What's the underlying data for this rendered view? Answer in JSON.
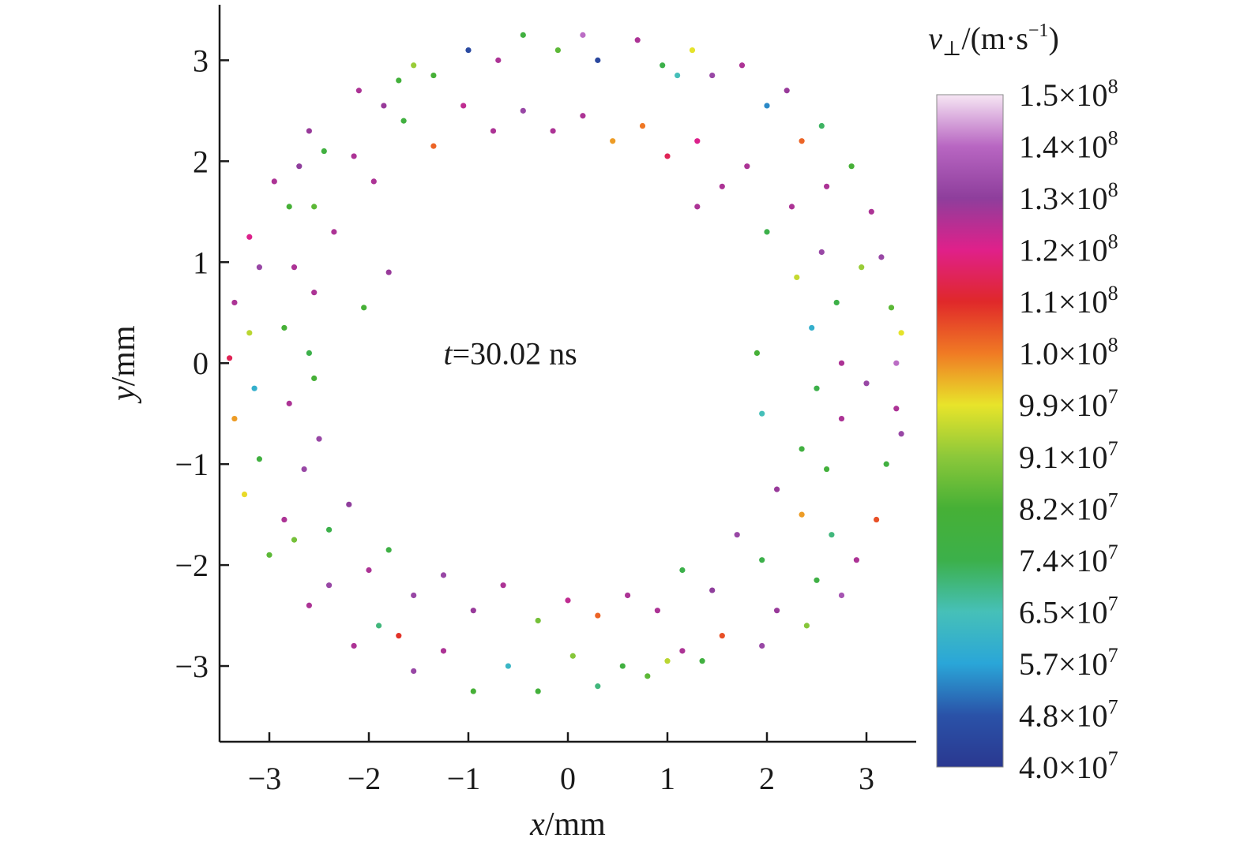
{
  "chart_data": {
    "type": "scatter",
    "xlabel": {
      "var": "x",
      "unit": "/mm"
    },
    "ylabel": {
      "var": "y",
      "unit": "/mm"
    },
    "xlim": [
      -3.5,
      3.5
    ],
    "ylim": [
      -3.75,
      3.55
    ],
    "xticks": [
      -3,
      -2,
      -1,
      0,
      1,
      2,
      3
    ],
    "yticks": [
      -3,
      -2,
      -1,
      0,
      1,
      2,
      3
    ],
    "xtick_labels": [
      "−3",
      "−2",
      "−1",
      "0",
      "1",
      "2",
      "3"
    ],
    "ytick_labels": [
      "−3",
      "−2",
      "−1",
      "0",
      "1",
      "2",
      "3"
    ],
    "grid": false,
    "annotation": {
      "var": "t",
      "text": "=30.02 ns",
      "x": -1.25,
      "y": 0.1
    },
    "colorbar": {
      "title": {
        "var": "v",
        "sub": "⊥",
        "unit": "/(m·s",
        "sup": "−1",
        "close": ")"
      },
      "position": "right",
      "min": 40000000.0,
      "max": 150000000.0,
      "labels_top_to_bottom": [
        {
          "mantissa": "1.5×10",
          "exp": "8"
        },
        {
          "mantissa": "1.4×10",
          "exp": "8"
        },
        {
          "mantissa": "1.3×10",
          "exp": "8"
        },
        {
          "mantissa": "1.2×10",
          "exp": "8"
        },
        {
          "mantissa": "1.1×10",
          "exp": "8"
        },
        {
          "mantissa": "1.0×10",
          "exp": "8"
        },
        {
          "mantissa": "9.9×10",
          "exp": "7"
        },
        {
          "mantissa": "9.1×10",
          "exp": "7"
        },
        {
          "mantissa": "8.2×10",
          "exp": "7"
        },
        {
          "mantissa": "7.4×10",
          "exp": "7"
        },
        {
          "mantissa": "6.5×10",
          "exp": "7"
        },
        {
          "mantissa": "5.7×10",
          "exp": "7"
        },
        {
          "mantissa": "4.8×10",
          "exp": "7"
        },
        {
          "mantissa": "4.0×10",
          "exp": "7"
        }
      ],
      "colormap_top_to_bottom": [
        "#f6e6f4",
        "#b866c2",
        "#8e3e9c",
        "#e0208a",
        "#e0282a",
        "#f07a24",
        "#e8e42a",
        "#8cc83a",
        "#46b036",
        "#3cb04a",
        "#46c0b8",
        "#2aa6d8",
        "#2a52a8",
        "#2a3890"
      ]
    },
    "series": [
      {
        "ring": "outer band",
        "points": [
          [
            3.3,
            0.0,
            142000000.0
          ],
          [
            3.25,
            0.55,
            85000000.0
          ],
          [
            3.3,
            -0.45,
            130000000.0
          ],
          [
            3.15,
            1.05,
            135000000.0
          ],
          [
            3.2,
            -1.0,
            78000000.0
          ],
          [
            3.05,
            1.5,
            130000000.0
          ],
          [
            3.1,
            -1.55,
            112000000.0
          ],
          [
            2.85,
            1.95,
            82000000.0
          ],
          [
            2.9,
            -1.95,
            130000000.0
          ],
          [
            2.55,
            2.35,
            72000000.0
          ],
          [
            2.75,
            -2.3,
            138000000.0
          ],
          [
            2.2,
            2.7,
            132000000.0
          ],
          [
            2.4,
            -2.6,
            90000000.0
          ],
          [
            1.75,
            2.95,
            130000000.0
          ],
          [
            1.95,
            -2.8,
            135000000.0
          ],
          [
            1.25,
            3.1,
            99000000.0
          ],
          [
            1.35,
            -2.95,
            78000000.0
          ],
          [
            0.7,
            3.2,
            130000000.0
          ],
          [
            0.8,
            -3.1,
            85000000.0
          ],
          [
            0.15,
            3.25,
            142000000.0
          ],
          [
            0.3,
            -3.2,
            70000000.0
          ],
          [
            -0.45,
            3.25,
            78000000.0
          ],
          [
            -0.3,
            -3.25,
            80000000.0
          ],
          [
            -1.0,
            3.1,
            46000000.0
          ],
          [
            -0.95,
            -3.25,
            82000000.0
          ],
          [
            -1.55,
            2.95,
            92000000.0
          ],
          [
            -1.55,
            -3.05,
            135000000.0
          ],
          [
            -2.1,
            2.7,
            130000000.0
          ],
          [
            -2.15,
            -2.8,
            130000000.0
          ],
          [
            -2.6,
            2.3,
            132000000.0
          ],
          [
            -2.6,
            -2.4,
            130000000.0
          ],
          [
            -2.95,
            1.8,
            130000000.0
          ],
          [
            -3.0,
            -1.9,
            85000000.0
          ],
          [
            -3.2,
            1.25,
            125000000.0
          ],
          [
            -3.25,
            -1.3,
            100000000.0
          ],
          [
            -3.35,
            0.6,
            130000000.0
          ],
          [
            -3.35,
            -0.55,
            105000000.0
          ],
          [
            -3.4,
            0.05,
            120000000.0
          ],
          [
            2.95,
            0.95,
            92000000.0
          ],
          [
            3.0,
            -0.2,
            135000000.0
          ],
          [
            2.6,
            1.75,
            130000000.0
          ],
          [
            2.65,
            -1.7,
            70000000.0
          ],
          [
            2.0,
            2.55,
            54000000.0
          ],
          [
            2.1,
            -2.45,
            132000000.0
          ],
          [
            1.45,
            2.85,
            135000000.0
          ],
          [
            1.55,
            -2.7,
            112000000.0
          ],
          [
            0.95,
            2.95,
            74000000.0
          ],
          [
            1.0,
            -2.95,
            95000000.0
          ],
          [
            0.3,
            3.0,
            45000000.0
          ],
          [
            0.55,
            -3.0,
            78000000.0
          ],
          [
            -0.7,
            3.0,
            130000000.0
          ],
          [
            -0.6,
            -3.0,
            62000000.0
          ],
          [
            -1.35,
            2.85,
            82000000.0
          ],
          [
            -1.25,
            -2.85,
            130000000.0
          ],
          [
            -1.85,
            2.55,
            132000000.0
          ],
          [
            -1.9,
            -2.6,
            70000000.0
          ],
          [
            -2.45,
            2.1,
            78000000.0
          ],
          [
            -2.4,
            -2.2,
            135000000.0
          ],
          [
            -2.8,
            1.55,
            82000000.0
          ],
          [
            -2.85,
            -1.55,
            130000000.0
          ],
          [
            -3.1,
            0.95,
            135000000.0
          ],
          [
            -3.1,
            -0.95,
            78000000.0
          ],
          [
            -3.2,
            0.3,
            95000000.0
          ],
          [
            -3.15,
            -0.25,
            60000000.0
          ],
          [
            3.35,
            0.3,
            99000000.0
          ],
          [
            3.35,
            -0.7,
            135000000.0
          ],
          [
            2.35,
            2.2,
            110000000.0
          ],
          [
            2.5,
            -2.15,
            76000000.0
          ],
          [
            1.1,
            2.85,
            65000000.0
          ],
          [
            1.15,
            -2.85,
            130000000.0
          ],
          [
            -0.1,
            3.1,
            85000000.0
          ],
          [
            0.05,
            -2.9,
            90000000.0
          ],
          [
            -1.7,
            2.8,
            80000000.0
          ],
          [
            -1.7,
            -2.7,
            115000000.0
          ],
          [
            -2.7,
            1.95,
            133000000.0
          ],
          [
            -2.75,
            -1.75,
            88000000.0
          ]
        ]
      },
      {
        "ring": "inner band",
        "points": [
          [
            2.75,
            0.0,
            130000000.0
          ],
          [
            2.7,
            0.6,
            75000000.0
          ],
          [
            2.75,
            -0.55,
            130000000.0
          ],
          [
            2.55,
            1.1,
            135000000.0
          ],
          [
            2.6,
            -1.05,
            80000000.0
          ],
          [
            2.25,
            1.55,
            130000000.0
          ],
          [
            2.35,
            -1.5,
            105000000.0
          ],
          [
            1.8,
            1.95,
            130000000.0
          ],
          [
            1.95,
            -1.95,
            74000000.0
          ],
          [
            1.3,
            2.2,
            125000000.0
          ],
          [
            1.45,
            -2.25,
            133000000.0
          ],
          [
            0.75,
            2.35,
            108000000.0
          ],
          [
            0.9,
            -2.45,
            130000000.0
          ],
          [
            0.15,
            2.45,
            130000000.0
          ],
          [
            0.3,
            -2.5,
            110000000.0
          ],
          [
            -0.45,
            2.5,
            135000000.0
          ],
          [
            -0.3,
            -2.55,
            88000000.0
          ],
          [
            -1.05,
            2.55,
            128000000.0
          ],
          [
            -0.95,
            -2.45,
            132000000.0
          ],
          [
            -1.65,
            2.4,
            78000000.0
          ],
          [
            -1.55,
            -2.3,
            135000000.0
          ],
          [
            -2.15,
            2.05,
            130000000.0
          ],
          [
            -2.0,
            -2.05,
            130000000.0
          ],
          [
            -2.55,
            1.55,
            85000000.0
          ],
          [
            -2.4,
            -1.65,
            74000000.0
          ],
          [
            -2.75,
            0.95,
            130000000.0
          ],
          [
            -2.65,
            -1.05,
            135000000.0
          ],
          [
            -2.85,
            0.35,
            82000000.0
          ],
          [
            -2.8,
            -0.4,
            130000000.0
          ],
          [
            2.45,
            0.35,
            60000000.0
          ],
          [
            2.5,
            -0.25,
            74000000.0
          ],
          [
            2.3,
            0.85,
            96000000.0
          ],
          [
            2.35,
            -0.85,
            78000000.0
          ],
          [
            2.0,
            1.3,
            74000000.0
          ],
          [
            2.1,
            -1.25,
            132000000.0
          ],
          [
            1.55,
            1.75,
            130000000.0
          ],
          [
            1.7,
            -1.7,
            135000000.0
          ],
          [
            1.0,
            2.05,
            120000000.0
          ],
          [
            1.15,
            -2.05,
            74000000.0
          ],
          [
            0.45,
            2.2,
            105000000.0
          ],
          [
            0.6,
            -2.3,
            130000000.0
          ],
          [
            -0.15,
            2.3,
            130000000.0
          ],
          [
            0.0,
            -2.35,
            128000000.0
          ],
          [
            -0.75,
            2.3,
            130000000.0
          ],
          [
            -0.65,
            -2.2,
            130000000.0
          ],
          [
            -1.35,
            2.15,
            110000000.0
          ],
          [
            -1.25,
            -2.1,
            135000000.0
          ],
          [
            -1.95,
            1.8,
            130000000.0
          ],
          [
            -1.8,
            -1.85,
            76000000.0
          ],
          [
            -2.35,
            1.3,
            130000000.0
          ],
          [
            -2.2,
            -1.4,
            133000000.0
          ],
          [
            -2.55,
            0.7,
            130000000.0
          ],
          [
            -2.5,
            -0.75,
            135000000.0
          ],
          [
            -2.6,
            0.1,
            74000000.0
          ],
          [
            -2.55,
            -0.15,
            82000000.0
          ],
          [
            1.9,
            0.1,
            82000000.0
          ],
          [
            1.95,
            -0.5,
            65000000.0
          ],
          [
            1.3,
            1.55,
            130000000.0
          ],
          [
            -1.8,
            0.9,
            132000000.0
          ],
          [
            -2.05,
            0.55,
            82000000.0
          ]
        ]
      }
    ]
  }
}
